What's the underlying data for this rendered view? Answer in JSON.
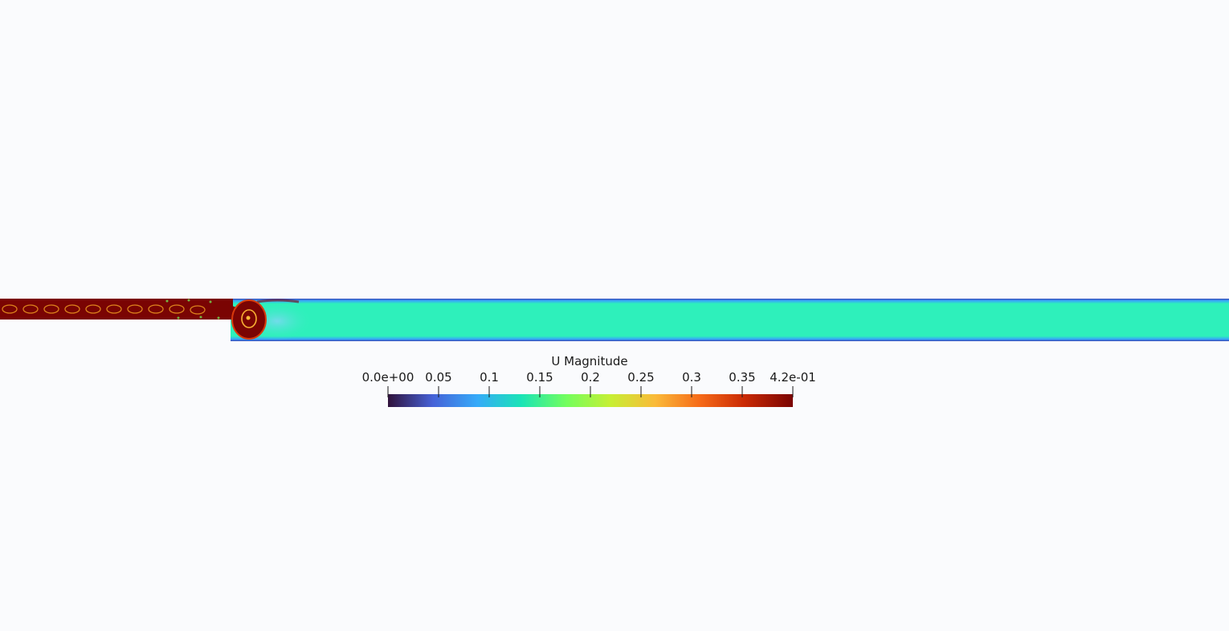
{
  "scalar_bar": {
    "title": "U Magnitude",
    "ticks": [
      "0.0e+00",
      "0.05",
      "0.1",
      "0.15",
      "0.2",
      "0.25",
      "0.3",
      "0.35",
      "4.2e-01"
    ],
    "colormap": [
      "#30123b",
      "#4662d7",
      "#36aaf9",
      "#1ae4b6",
      "#72fe5e",
      "#c7ef34",
      "#faba39",
      "#f66b19",
      "#ca2a04",
      "#7a0403"
    ]
  },
  "field_colors": {
    "bulk_flow": "#35f5b0",
    "wall_layer": "#4a5fd0",
    "jet_core": "#7a0403",
    "recirculation": "#72fe5e"
  }
}
